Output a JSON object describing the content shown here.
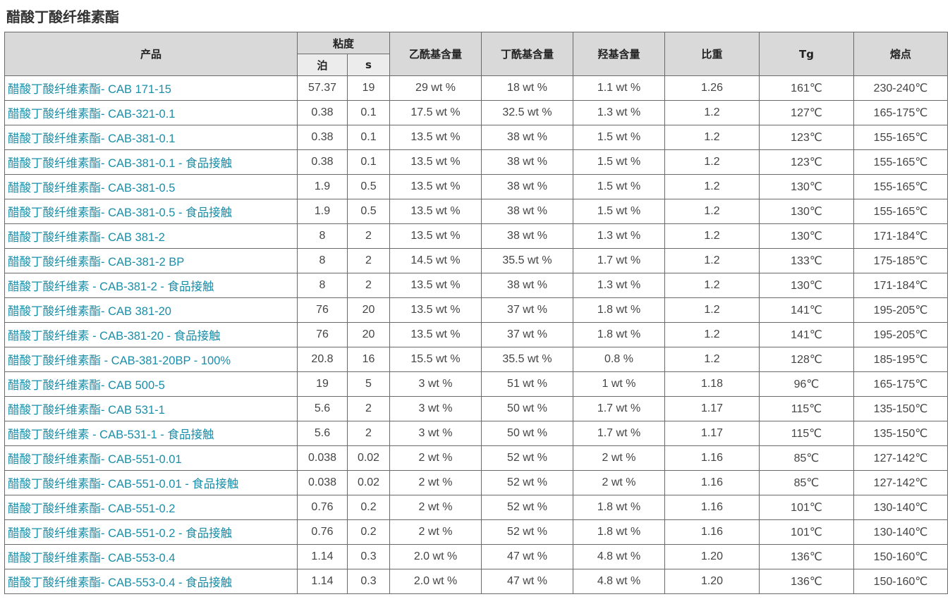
{
  "title": "醋酸丁酸纤维素酯",
  "headers": {
    "product": "产品",
    "viscosity": "粘度",
    "poise": "泊",
    "seconds": "s",
    "acetyl": "乙酰基含量",
    "butyryl": "丁酰基含量",
    "hydroxyl": "羟基含量",
    "specific_gravity": "比重",
    "tg": "Tg",
    "melting_point": "熔点"
  },
  "rows": [
    {
      "name": "醋酸丁酸纤维素酯- CAB 171-15",
      "poise": "57.37",
      "s": "19",
      "acetyl": "29 wt %",
      "butyryl": "18 wt %",
      "hydroxyl": "1.1 wt %",
      "sg": "1.26",
      "tg": "161℃",
      "mp": "230-240℃"
    },
    {
      "name": "醋酸丁酸纤维素酯- CAB-321-0.1",
      "poise": "0.38",
      "s": "0.1",
      "acetyl": "17.5 wt %",
      "butyryl": "32.5 wt %",
      "hydroxyl": "1.3 wt %",
      "sg": "1.2",
      "tg": "127℃",
      "mp": "165-175℃"
    },
    {
      "name": "醋酸丁酸纤维素酯- CAB-381-0.1",
      "poise": "0.38",
      "s": "0.1",
      "acetyl": "13.5 wt %",
      "butyryl": "38 wt %",
      "hydroxyl": "1.5 wt %",
      "sg": "1.2",
      "tg": "123℃",
      "mp": "155-165℃"
    },
    {
      "name": "醋酸丁酸纤维素酯- CAB-381-0.1 - 食品接触",
      "poise": "0.38",
      "s": "0.1",
      "acetyl": "13.5 wt %",
      "butyryl": "38 wt %",
      "hydroxyl": "1.5 wt %",
      "sg": "1.2",
      "tg": "123℃",
      "mp": "155-165℃"
    },
    {
      "name": "醋酸丁酸纤维素酯- CAB-381-0.5",
      "poise": "1.9",
      "s": "0.5",
      "acetyl": "13.5 wt %",
      "butyryl": "38 wt %",
      "hydroxyl": "1.5 wt %",
      "sg": "1.2",
      "tg": "130℃",
      "mp": "155-165℃"
    },
    {
      "name": "醋酸丁酸纤维素酯- CAB-381-0.5 - 食品接触",
      "poise": "1.9",
      "s": "0.5",
      "acetyl": "13.5 wt %",
      "butyryl": "38 wt %",
      "hydroxyl": "1.5 wt %",
      "sg": "1.2",
      "tg": "130℃",
      "mp": "155-165℃"
    },
    {
      "name": "醋酸丁酸纤维素酯- CAB 381-2",
      "poise": "8",
      "s": "2",
      "acetyl": "13.5 wt %",
      "butyryl": "38 wt %",
      "hydroxyl": "1.3 wt %",
      "sg": "1.2",
      "tg": "130℃",
      "mp": "171-184℃"
    },
    {
      "name": "醋酸丁酸纤维素酯- CAB-381-2 BP",
      "poise": "8",
      "s": "2",
      "acetyl": "14.5 wt %",
      "butyryl": "35.5 wt %",
      "hydroxyl": "1.7 wt %",
      "sg": "1.2",
      "tg": "133℃",
      "mp": "175-185℃"
    },
    {
      "name": "醋酸丁酸纤维素 - CAB-381-2 - 食品接触",
      "poise": "8",
      "s": "2",
      "acetyl": "13.5 wt %",
      "butyryl": "38 wt %",
      "hydroxyl": "1.3 wt %",
      "sg": "1.2",
      "tg": "130℃",
      "mp": "171-184℃"
    },
    {
      "name": "醋酸丁酸纤维素酯- CAB 381-20",
      "poise": "76",
      "s": "20",
      "acetyl": "13.5 wt %",
      "butyryl": "37 wt %",
      "hydroxyl": "1.8 wt %",
      "sg": "1.2",
      "tg": "141℃",
      "mp": "195-205℃"
    },
    {
      "name": "醋酸丁酸纤维素 - CAB-381-20 - 食品接触",
      "poise": "76",
      "s": "20",
      "acetyl": "13.5 wt %",
      "butyryl": "37 wt %",
      "hydroxyl": "1.8 wt %",
      "sg": "1.2",
      "tg": "141℃",
      "mp": "195-205℃"
    },
    {
      "name": "醋酸丁酸纤维素酯 - CAB-381-20BP - 100%",
      "poise": "20.8",
      "s": "16",
      "acetyl": "15.5 wt %",
      "butyryl": "35.5 wt %",
      "hydroxyl": "0.8 %",
      "sg": "1.2",
      "tg": "128℃",
      "mp": "185-195℃"
    },
    {
      "name": "醋酸丁酸纤维素酯- CAB 500-5",
      "poise": "19",
      "s": "5",
      "acetyl": "3 wt %",
      "butyryl": "51 wt %",
      "hydroxyl": "1 wt %",
      "sg": "1.18",
      "tg": "96℃",
      "mp": "165-175℃"
    },
    {
      "name": "醋酸丁酸纤维素酯- CAB 531-1",
      "poise": "5.6",
      "s": "2",
      "acetyl": "3 wt %",
      "butyryl": "50 wt %",
      "hydroxyl": "1.7 wt %",
      "sg": "1.17",
      "tg": "115℃",
      "mp": "135-150℃"
    },
    {
      "name": "醋酸丁酸纤维素 - CAB-531-1 - 食品接触",
      "poise": "5.6",
      "s": "2",
      "acetyl": "3 wt %",
      "butyryl": "50 wt %",
      "hydroxyl": "1.7 wt %",
      "sg": "1.17",
      "tg": "115℃",
      "mp": "135-150℃"
    },
    {
      "name": "醋酸丁酸纤维素酯- CAB-551-0.01",
      "poise": "0.038",
      "s": "0.02",
      "acetyl": "2 wt %",
      "butyryl": "52 wt %",
      "hydroxyl": "2 wt %",
      "sg": "1.16",
      "tg": "85℃",
      "mp": "127-142℃"
    },
    {
      "name": "醋酸丁酸纤维素酯- CAB-551-0.01 - 食品接触",
      "poise": "0.038",
      "s": "0.02",
      "acetyl": "2 wt %",
      "butyryl": "52 wt %",
      "hydroxyl": "2 wt %",
      "sg": "1.16",
      "tg": "85℃",
      "mp": "127-142℃"
    },
    {
      "name": "醋酸丁酸纤维素酯- CAB-551-0.2",
      "poise": "0.76",
      "s": "0.2",
      "acetyl": "2 wt %",
      "butyryl": "52 wt %",
      "hydroxyl": "1.8 wt %",
      "sg": "1.16",
      "tg": "101℃",
      "mp": "130-140℃"
    },
    {
      "name": "醋酸丁酸纤维素酯- CAB-551-0.2 - 食品接触",
      "poise": "0.76",
      "s": "0.2",
      "acetyl": "2 wt %",
      "butyryl": "52 wt %",
      "hydroxyl": "1.8 wt %",
      "sg": "1.16",
      "tg": "101℃",
      "mp": "130-140℃"
    },
    {
      "name": "醋酸丁酸纤维素酯- CAB-553-0.4",
      "poise": "1.14",
      "s": "0.3",
      "acetyl": "2.0 wt %",
      "butyryl": "47 wt %",
      "hydroxyl": "4.8 wt %",
      "sg": "1.20",
      "tg": "136℃",
      "mp": "150-160℃"
    },
    {
      "name": "醋酸丁酸纤维素酯- CAB-553-0.4 - 食品接触",
      "poise": "1.14",
      "s": "0.3",
      "acetyl": "2.0 wt %",
      "butyryl": "47 wt %",
      "hydroxyl": "4.8 wt %",
      "sg": "1.20",
      "tg": "136℃",
      "mp": "150-160℃"
    }
  ]
}
